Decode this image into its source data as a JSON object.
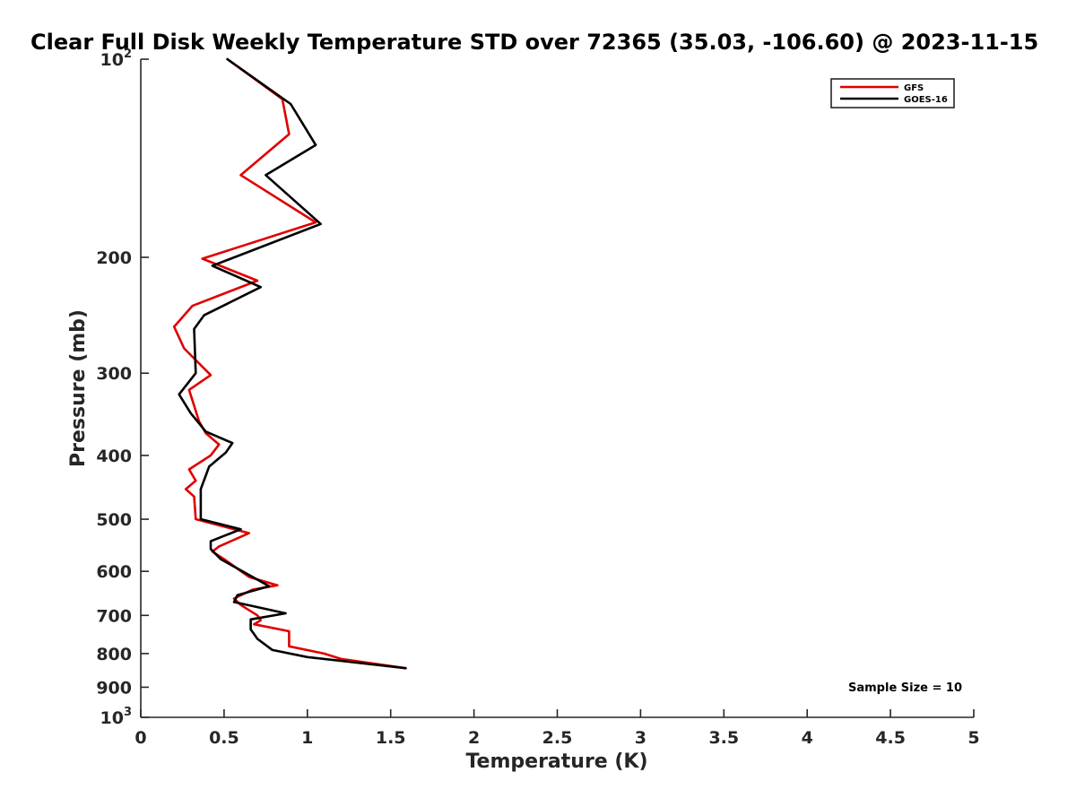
{
  "chart_data": {
    "type": "line",
    "title": "Clear Full Disk Weekly Temperature STD over 72365 (35.03, -106.60) @ 2023-11-15",
    "xlabel": "Temperature (K)",
    "ylabel": "Pressure (mb)",
    "xlim": [
      0,
      5
    ],
    "ylim": [
      100,
      1000
    ],
    "yscale": "log",
    "yreversed": true,
    "grid": false,
    "x_ticks": [
      "0",
      "0.5",
      "1",
      "1.5",
      "2",
      "2.5",
      "3",
      "3.5",
      "4",
      "4.5",
      "5"
    ],
    "x_tick_values": [
      0,
      0.5,
      1,
      1.5,
      2,
      2.5,
      3,
      3.5,
      4,
      4.5,
      5
    ],
    "y_ticks": [
      {
        "value": 100,
        "base": "10",
        "exp": "2"
      },
      {
        "value": 200,
        "label": "200"
      },
      {
        "value": 300,
        "label": "300"
      },
      {
        "value": 400,
        "label": "400"
      },
      {
        "value": 500,
        "label": "500"
      },
      {
        "value": 600,
        "label": "600"
      },
      {
        "value": 700,
        "label": "700"
      },
      {
        "value": 800,
        "label": "800"
      },
      {
        "value": 900,
        "label": "900"
      },
      {
        "value": 1000,
        "base": "10",
        "exp": "3"
      }
    ],
    "legend_position": "top-right",
    "annotation": "Sample Size = 10",
    "series": [
      {
        "name": "GFS",
        "color": "#e00000",
        "points": [
          [
            0.52,
            100
          ],
          [
            0.85,
            115
          ],
          [
            0.89,
            130
          ],
          [
            0.6,
            150
          ],
          [
            1.05,
            177
          ],
          [
            0.37,
            201
          ],
          [
            0.7,
            217
          ],
          [
            0.31,
            237
          ],
          [
            0.2,
            255
          ],
          [
            0.26,
            275
          ],
          [
            0.42,
            302
          ],
          [
            0.29,
            318
          ],
          [
            0.35,
            355
          ],
          [
            0.39,
            370
          ],
          [
            0.47,
            385
          ],
          [
            0.42,
            400
          ],
          [
            0.29,
            420
          ],
          [
            0.33,
            437
          ],
          [
            0.27,
            450
          ],
          [
            0.32,
            462
          ],
          [
            0.33,
            500
          ],
          [
            0.65,
            525
          ],
          [
            0.47,
            550
          ],
          [
            0.43,
            560
          ],
          [
            0.5,
            575
          ],
          [
            0.65,
            612
          ],
          [
            0.82,
            630
          ],
          [
            0.67,
            640
          ],
          [
            0.56,
            660
          ],
          [
            0.6,
            675
          ],
          [
            0.7,
            700
          ],
          [
            0.72,
            712
          ],
          [
            0.68,
            722
          ],
          [
            0.89,
            740
          ],
          [
            0.89,
            780
          ],
          [
            1.1,
            800
          ],
          [
            1.2,
            815
          ],
          [
            1.59,
            842
          ]
        ]
      },
      {
        "name": "GOES-16",
        "color": "#000000",
        "points": [
          [
            0.52,
            100
          ],
          [
            0.9,
            117
          ],
          [
            1.05,
            135
          ],
          [
            0.75,
            150
          ],
          [
            1.08,
            178
          ],
          [
            0.43,
            206
          ],
          [
            0.72,
            222
          ],
          [
            0.38,
            245
          ],
          [
            0.32,
            257
          ],
          [
            0.33,
            300
          ],
          [
            0.23,
            323
          ],
          [
            0.3,
            345
          ],
          [
            0.39,
            368
          ],
          [
            0.55,
            383
          ],
          [
            0.51,
            396
          ],
          [
            0.41,
            416
          ],
          [
            0.36,
            450
          ],
          [
            0.36,
            500
          ],
          [
            0.6,
            518
          ],
          [
            0.42,
            540
          ],
          [
            0.42,
            555
          ],
          [
            0.48,
            575
          ],
          [
            0.77,
            632
          ],
          [
            0.58,
            652
          ],
          [
            0.56,
            668
          ],
          [
            0.87,
            695
          ],
          [
            0.66,
            710
          ],
          [
            0.66,
            735
          ],
          [
            0.7,
            760
          ],
          [
            0.79,
            790
          ],
          [
            1.0,
            810
          ],
          [
            1.59,
            842
          ]
        ]
      }
    ]
  }
}
